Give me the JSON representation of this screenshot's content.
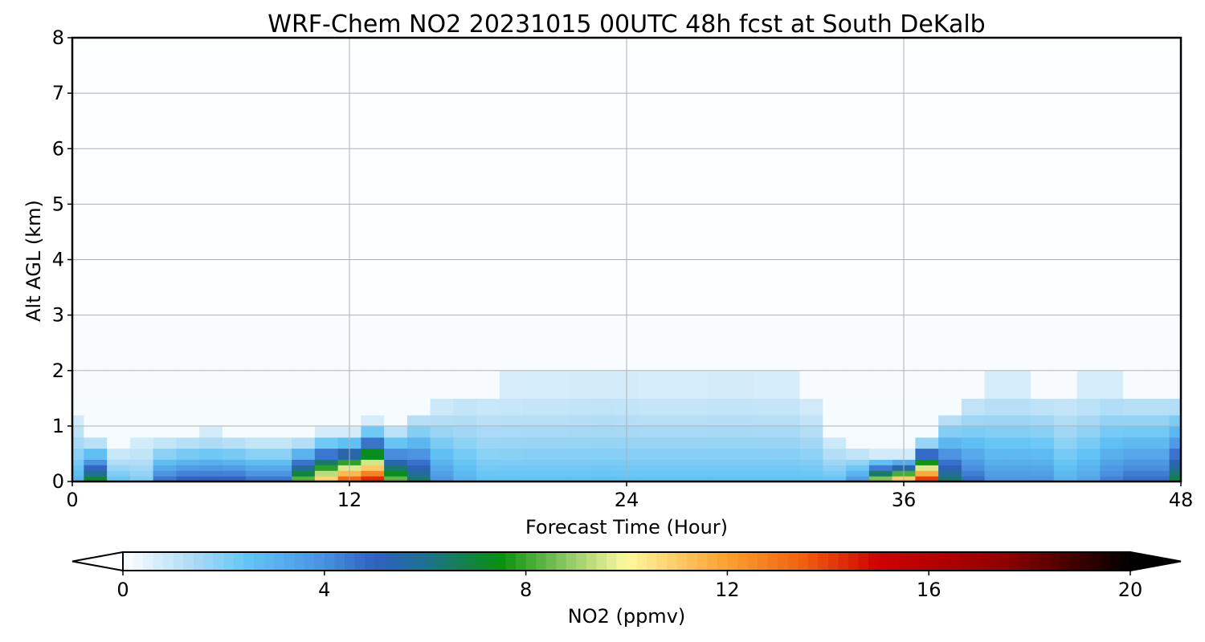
{
  "chart_data": {
    "type": "heatmap",
    "title": "WRF-Chem NO2  20231015 00UTC 48h fcst at South DeKalb",
    "xlabel": "Forecast Time (Hour)",
    "ylabel": "Alt AGL (km)",
    "xlim": [
      0,
      48
    ],
    "ylim": [
      0,
      8
    ],
    "x_ticks": [
      "0",
      "12",
      "24",
      "36",
      "48"
    ],
    "y_ticks": [
      "0",
      "1",
      "2",
      "3",
      "4",
      "5",
      "6",
      "7",
      "8"
    ],
    "grid": true,
    "x": [
      0,
      1,
      2,
      3,
      4,
      5,
      6,
      7,
      8,
      9,
      10,
      11,
      12,
      13,
      14,
      15,
      16,
      17,
      18,
      19,
      20,
      21,
      22,
      23,
      24,
      25,
      26,
      27,
      28,
      29,
      30,
      31,
      32,
      33,
      34,
      35,
      36,
      37,
      38,
      39,
      40,
      41,
      42,
      43,
      44,
      45,
      46,
      47,
      48
    ],
    "z": [
      0,
      0.1,
      0.2,
      0.3,
      0.4,
      0.6,
      0.8,
      1.0,
      1.2,
      1.5,
      2.0,
      3.0,
      8.0
    ],
    "surface_no2": [
      2.5,
      7.5,
      2,
      1.5,
      4.5,
      5,
      5,
      5,
      4.5,
      4.5,
      9,
      12,
      15,
      16,
      9,
      6.5,
      3.5,
      2.5,
      2,
      2,
      2,
      2,
      2,
      2,
      2,
      2,
      2,
      2,
      2,
      2,
      2,
      2,
      2,
      2,
      3.5,
      10,
      13,
      16,
      6.5,
      4.5,
      3.5,
      3.5,
      3.5,
      2.5,
      3,
      4,
      4.5,
      4.5,
      7
    ],
    "mixing_height_km": [
      1.2,
      0.8,
      0.6,
      0.7,
      0.8,
      0.85,
      0.9,
      0.85,
      0.8,
      0.8,
      0.8,
      0.9,
      0.9,
      1.1,
      1.0,
      1.3,
      1.5,
      1.7,
      1.7,
      1.75,
      1.8,
      1.8,
      1.85,
      1.9,
      1.85,
      1.8,
      1.8,
      1.8,
      1.85,
      1.85,
      1.8,
      1.8,
      1.5,
      0.8,
      0.6,
      0.5,
      0.5,
      0.8,
      1.3,
      1.6,
      1.8,
      1.8,
      1.7,
      1.7,
      1.8,
      1.8,
      1.7,
      1.7,
      1.6
    ],
    "colorbar": {
      "label": "NO2  (ppmv)",
      "min": 0,
      "max": 20,
      "ticks": [
        "0",
        "4",
        "8",
        "12",
        "16",
        "20"
      ],
      "extend": "both",
      "stops": [
        {
          "v": 0,
          "c": "#ffffff"
        },
        {
          "v": 1.5,
          "c": "#a6d8f5"
        },
        {
          "v": 2.5,
          "c": "#62c4f5"
        },
        {
          "v": 4,
          "c": "#4a90e0"
        },
        {
          "v": 5,
          "c": "#3060c0"
        },
        {
          "v": 6,
          "c": "#207090"
        },
        {
          "v": 7.5,
          "c": "#089010"
        },
        {
          "v": 9,
          "c": "#a0d070"
        },
        {
          "v": 10,
          "c": "#fff8a0"
        },
        {
          "v": 12,
          "c": "#fba030"
        },
        {
          "v": 13.5,
          "c": "#f06010"
        },
        {
          "v": 15,
          "c": "#d00000"
        },
        {
          "v": 17.5,
          "c": "#900000"
        },
        {
          "v": 20,
          "c": "#000000"
        }
      ]
    }
  }
}
